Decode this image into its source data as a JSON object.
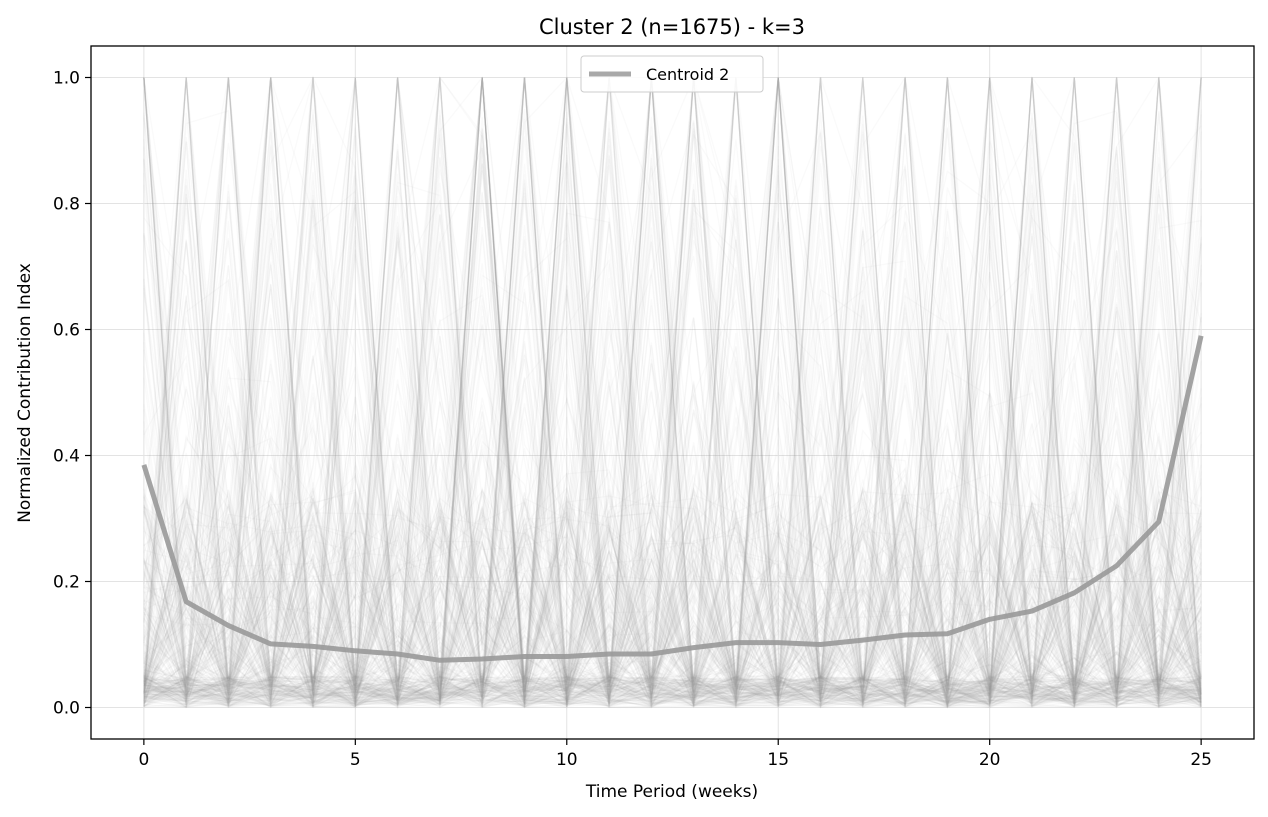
{
  "chart_data": {
    "type": "line",
    "title": "Cluster 2 (n=1675) - k=3",
    "xlabel": "Time Period (weeks)",
    "ylabel": "Normalized Contribution Index",
    "xlim": [
      -1.25,
      26.25
    ],
    "ylim": [
      -0.05,
      1.05
    ],
    "xticks": [
      0,
      5,
      10,
      15,
      20,
      25
    ],
    "xtick_labels": [
      "0",
      "5",
      "10",
      "15",
      "20",
      "25"
    ],
    "yticks": [
      0.0,
      0.2,
      0.4,
      0.6,
      0.8,
      1.0
    ],
    "ytick_labels": [
      "0.0",
      "0.2",
      "0.4",
      "0.6",
      "0.8",
      "1.0"
    ],
    "grid": true,
    "legend_position": "top-center",
    "series_color": "#999999",
    "background_series_count": 1675,
    "series": [
      {
        "name": "Centroid 2",
        "x": [
          0,
          1,
          2,
          3,
          4,
          5,
          6,
          7,
          8,
          9,
          10,
          11,
          12,
          13,
          14,
          15,
          16,
          17,
          18,
          19,
          20,
          21,
          22,
          23,
          24,
          25
        ],
        "values": [
          0.385,
          0.168,
          0.13,
          0.101,
          0.097,
          0.09,
          0.085,
          0.075,
          0.077,
          0.081,
          0.081,
          0.085,
          0.085,
          0.095,
          0.103,
          0.103,
          0.1,
          0.107,
          0.115,
          0.117,
          0.14,
          0.153,
          0.182,
          0.225,
          0.295,
          0.59
        ]
      }
    ]
  }
}
